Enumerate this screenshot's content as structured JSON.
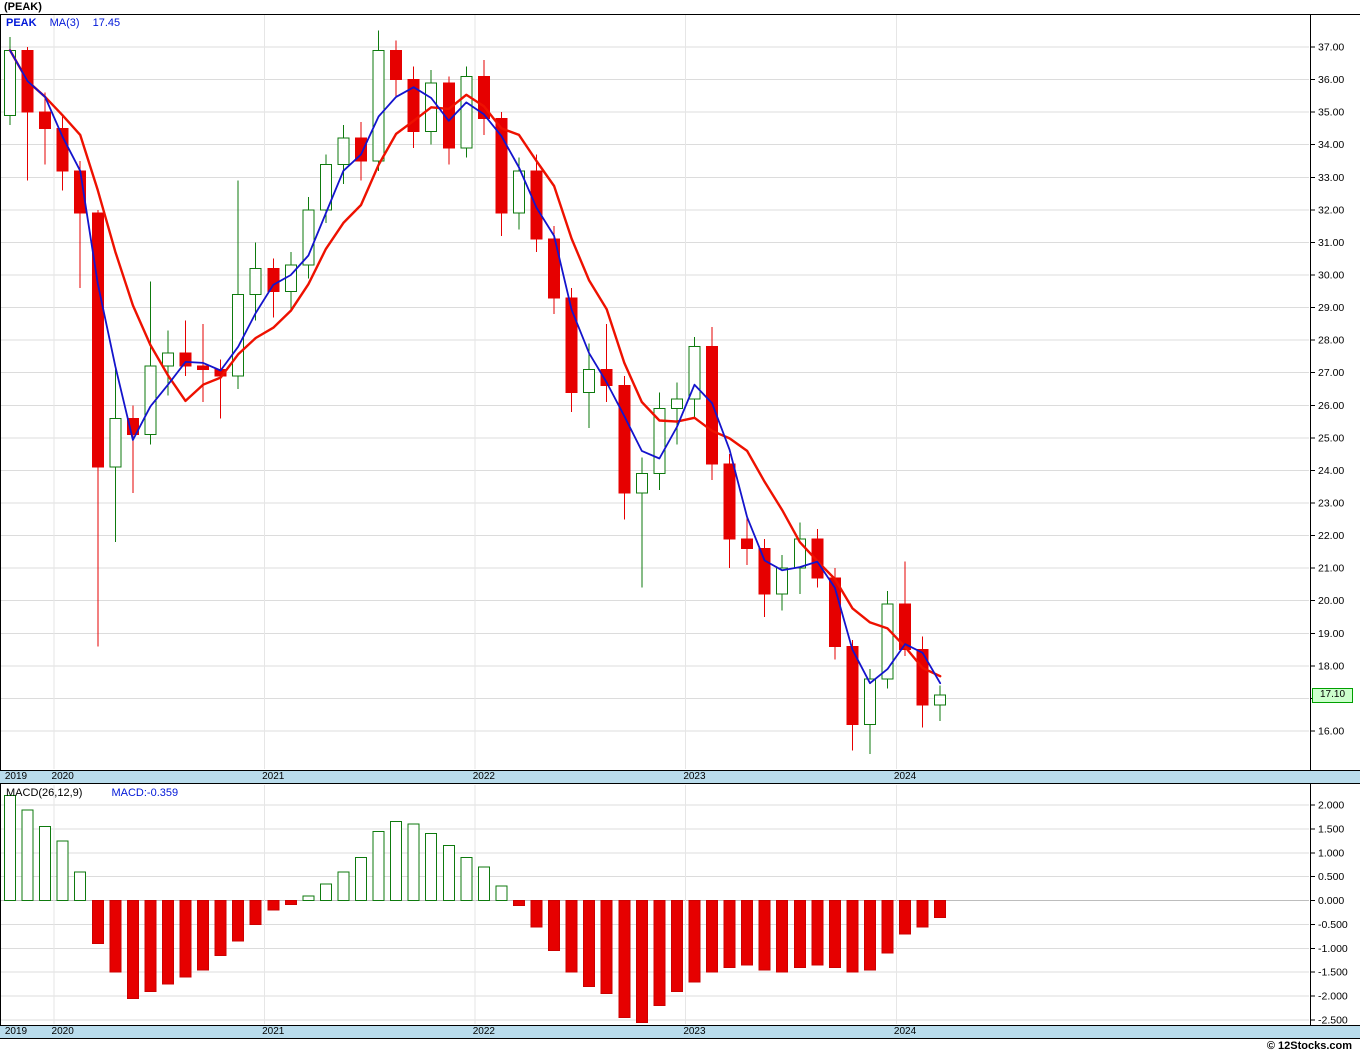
{
  "title": "(PEAK)",
  "price_panel": {
    "legend": {
      "symbol": "PEAK",
      "ma_label": "MA(3)",
      "ma_value": "17.45"
    },
    "last_price_label": "17.10"
  },
  "macd_panel": {
    "legend": {
      "name": "MACD(26,12,9)",
      "value": "MACD:-0.359"
    }
  },
  "footer": {
    "watermark": "© 12Stocks.com"
  },
  "chart_data": [
    {
      "type": "candlestick",
      "symbol": "PEAK",
      "x_labels": [
        {
          "label": "2019",
          "index": 0
        },
        {
          "label": "2020",
          "index": 3
        },
        {
          "label": "2021",
          "index": 15
        },
        {
          "label": "2022",
          "index": 27
        },
        {
          "label": "2023",
          "index": 39
        },
        {
          "label": "2024",
          "index": 51
        }
      ],
      "y_ticks": [
        37,
        36,
        35,
        34,
        33,
        32,
        31,
        30,
        29,
        28,
        27,
        26,
        25,
        24,
        23,
        22,
        21,
        20,
        19,
        18,
        17,
        16
      ],
      "y_tick_label_hidden": 17,
      "last_close": 17.1,
      "overlays": [
        {
          "name": "MA(3)",
          "window": 3,
          "color": "#1414cc",
          "width": 1.8,
          "last_value": 17.45
        },
        {
          "name": "MA(6)",
          "window": 6,
          "color": "#ee1100",
          "width": 2.4
        }
      ],
      "candles": [
        [
          34.9,
          37.3,
          34.6,
          36.9
        ],
        [
          36.9,
          37.0,
          32.9,
          35.0
        ],
        [
          35.0,
          35.6,
          33.4,
          34.5
        ],
        [
          34.5,
          34.9,
          32.6,
          33.2
        ],
        [
          33.2,
          33.5,
          29.6,
          31.9
        ],
        [
          31.9,
          32.0,
          18.6,
          24.1
        ],
        [
          24.1,
          27.1,
          21.8,
          25.6
        ],
        [
          25.6,
          26.0,
          23.3,
          25.1
        ],
        [
          25.1,
          29.8,
          24.8,
          27.2
        ],
        [
          27.2,
          28.3,
          26.3,
          27.6
        ],
        [
          27.6,
          28.6,
          26.9,
          27.2
        ],
        [
          27.2,
          28.5,
          26.1,
          27.1
        ],
        [
          27.1,
          27.4,
          25.6,
          26.9
        ],
        [
          26.9,
          32.9,
          26.5,
          29.4
        ],
        [
          29.4,
          31.0,
          28.6,
          30.2
        ],
        [
          30.2,
          30.5,
          28.7,
          29.5
        ],
        [
          29.5,
          30.7,
          28.9,
          30.3
        ],
        [
          30.3,
          32.4,
          29.9,
          32.0
        ],
        [
          32.0,
          33.7,
          31.6,
          33.4
        ],
        [
          33.4,
          34.6,
          32.8,
          34.2
        ],
        [
          34.2,
          34.7,
          32.9,
          33.5
        ],
        [
          33.5,
          37.5,
          33.2,
          36.9
        ],
        [
          36.9,
          37.2,
          35.5,
          36.0
        ],
        [
          36.0,
          36.4,
          33.9,
          34.4
        ],
        [
          34.4,
          36.3,
          34.0,
          35.9
        ],
        [
          35.9,
          36.1,
          33.4,
          33.9
        ],
        [
          33.9,
          36.4,
          33.6,
          36.1
        ],
        [
          36.1,
          36.6,
          34.3,
          34.8
        ],
        [
          34.8,
          35.0,
          31.2,
          31.9
        ],
        [
          31.9,
          33.6,
          31.4,
          33.2
        ],
        [
          33.2,
          33.7,
          30.7,
          31.1
        ],
        [
          31.1,
          31.5,
          28.8,
          29.3
        ],
        [
          29.3,
          29.6,
          25.8,
          26.4
        ],
        [
          26.4,
          27.9,
          25.3,
          27.1
        ],
        [
          27.1,
          28.5,
          26.1,
          26.6
        ],
        [
          26.6,
          26.9,
          22.5,
          23.3
        ],
        [
          23.3,
          24.4,
          20.4,
          23.9
        ],
        [
          23.9,
          26.4,
          23.4,
          25.9
        ],
        [
          25.9,
          26.7,
          24.8,
          26.2
        ],
        [
          26.2,
          28.1,
          25.6,
          27.8
        ],
        [
          27.8,
          28.4,
          23.7,
          24.2
        ],
        [
          24.2,
          24.5,
          21.0,
          21.9
        ],
        [
          21.9,
          22.6,
          21.1,
          21.6
        ],
        [
          21.6,
          21.9,
          19.5,
          20.2
        ],
        [
          20.2,
          21.4,
          19.7,
          21.0
        ],
        [
          21.0,
          22.4,
          20.2,
          21.9
        ],
        [
          21.9,
          22.2,
          20.4,
          20.7
        ],
        [
          20.7,
          21.0,
          18.2,
          18.6
        ],
        [
          18.6,
          18.8,
          15.4,
          16.2
        ],
        [
          16.2,
          17.9,
          15.3,
          17.6
        ],
        [
          17.6,
          20.3,
          17.3,
          19.9
        ],
        [
          19.9,
          21.2,
          18.3,
          18.5
        ],
        [
          18.5,
          18.9,
          16.1,
          16.8
        ],
        [
          16.8,
          17.4,
          16.3,
          17.1
        ]
      ]
    },
    {
      "type": "bar",
      "name": "MACD(26,12,9)",
      "last_value": -0.359,
      "y_ticks": [
        2.0,
        1.5,
        1.0,
        0.5,
        0.0,
        -0.5,
        -1.0,
        -1.5,
        -2.0,
        -2.5
      ],
      "values": [
        2.2,
        1.9,
        1.55,
        1.25,
        0.6,
        -0.9,
        -1.5,
        -2.05,
        -1.9,
        -1.75,
        -1.6,
        -1.45,
        -1.15,
        -0.85,
        -0.5,
        -0.2,
        -0.08,
        0.1,
        0.35,
        0.6,
        0.9,
        1.45,
        1.65,
        1.6,
        1.4,
        1.15,
        0.9,
        0.7,
        0.3,
        -0.1,
        -0.55,
        -1.05,
        -1.5,
        -1.8,
        -1.95,
        -2.45,
        -2.55,
        -2.2,
        -1.9,
        -1.7,
        -1.5,
        -1.4,
        -1.35,
        -1.45,
        -1.5,
        -1.4,
        -1.35,
        -1.4,
        -1.5,
        -1.45,
        -1.1,
        -0.7,
        -0.55,
        -0.359
      ]
    }
  ]
}
